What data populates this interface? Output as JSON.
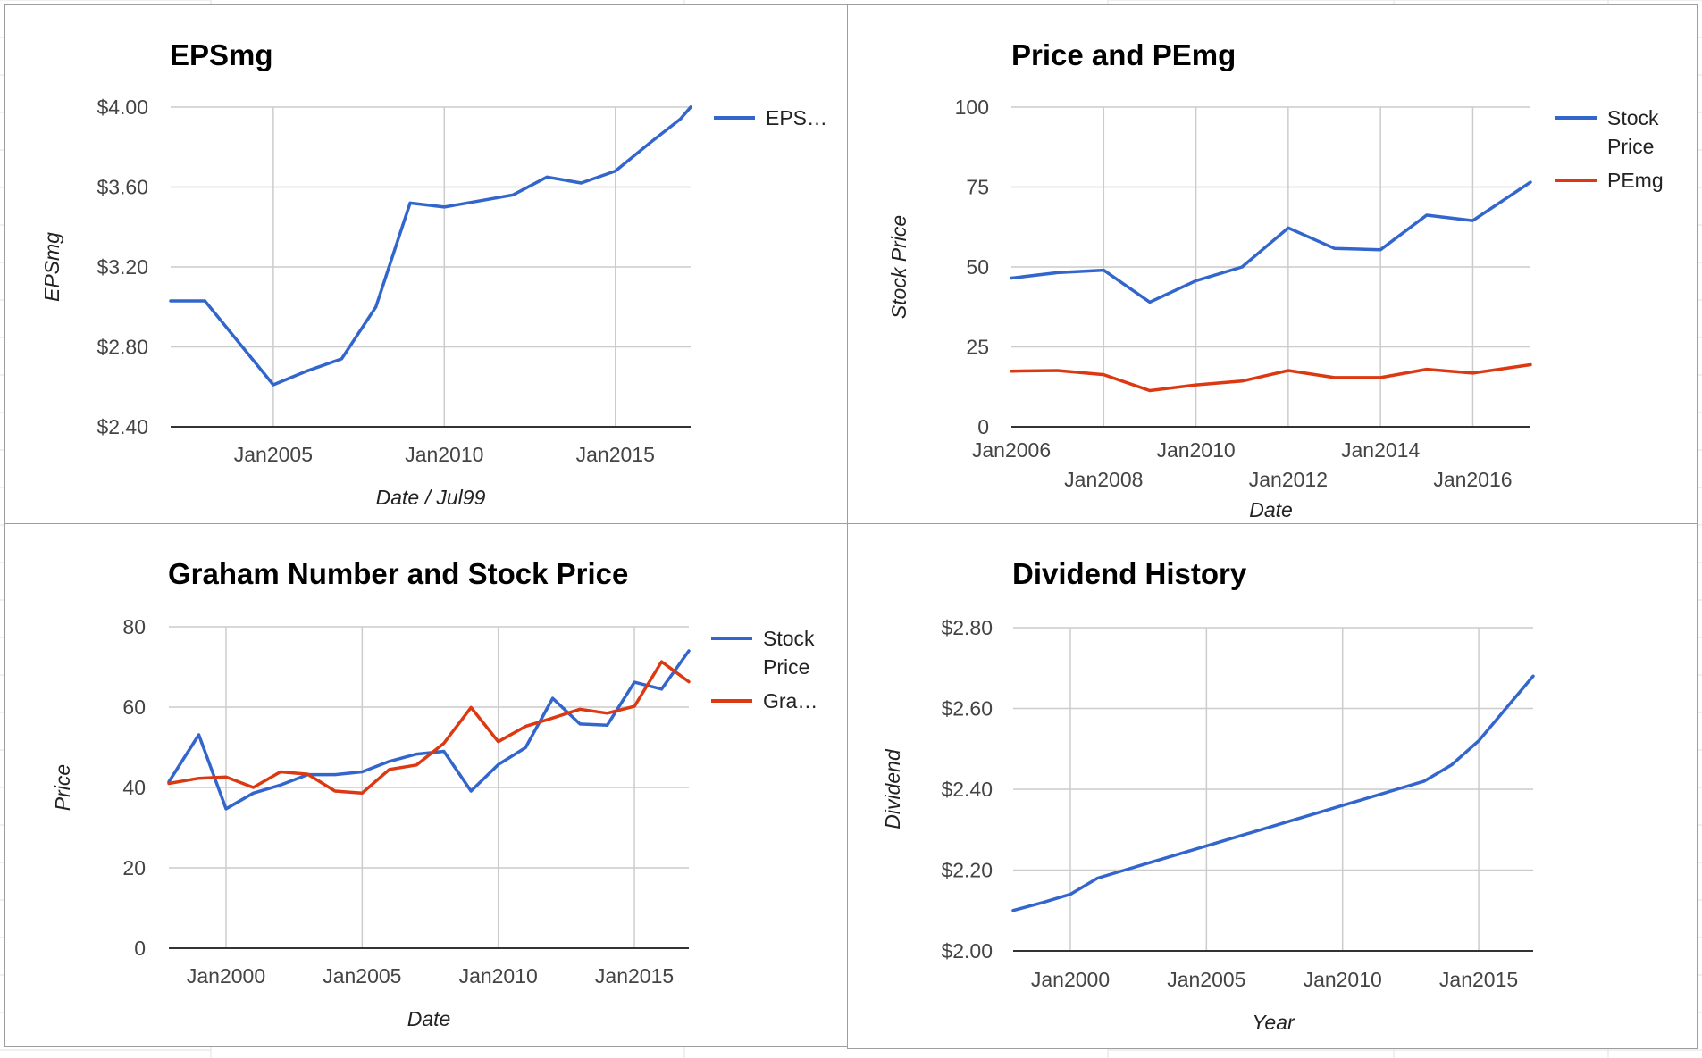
{
  "colors": {
    "blue": "#3366cc",
    "red": "#dc3912",
    "grid": "#cccccc",
    "axis": "#333333",
    "sheet_grid": "#e2e2e2"
  },
  "chart_data": [
    {
      "type": "line",
      "title": "EPSmg",
      "xlabel": "Date / Jul99",
      "ylabel": "EPSmg",
      "x_ticks": [
        "Jan2005",
        "Jan2010",
        "Jan2015"
      ],
      "x_tick_values": [
        2005,
        2010,
        2015
      ],
      "xlim": [
        2002,
        2017.2
      ],
      "ylim": [
        2.4,
        4.0
      ],
      "y_ticks": [
        2.4,
        2.8,
        3.2,
        3.6,
        4.0
      ],
      "y_tick_labels": [
        "$2.40",
        "$2.80",
        "$3.20",
        "$3.60",
        "$4.00"
      ],
      "grid": true,
      "legend_position": "right",
      "series": [
        {
          "name": "EPS…",
          "color": "blue",
          "x": [
            2002,
            2003,
            2004,
            2005,
            2006,
            2007,
            2008,
            2009,
            2010,
            2011,
            2012,
            2013,
            2014,
            2015,
            2016,
            2016.9,
            2017.2
          ],
          "y": [
            3.03,
            3.03,
            2.82,
            2.61,
            2.68,
            2.74,
            3.0,
            3.52,
            3.5,
            3.53,
            3.56,
            3.65,
            3.62,
            3.68,
            3.82,
            3.94,
            4.0
          ]
        }
      ]
    },
    {
      "type": "line",
      "title": "Price and PEmg",
      "xlabel": "Date",
      "ylabel": "Stock Price",
      "x_ticks": [
        "Jan2006",
        "Jan2008",
        "Jan2010",
        "Jan2012",
        "Jan2014",
        "Jan2016"
      ],
      "x_tick_values": [
        2006,
        2008,
        2010,
        2012,
        2014,
        2016
      ],
      "xlim": [
        2006,
        2017.25
      ],
      "ylim": [
        0,
        100
      ],
      "y_ticks": [
        0,
        25,
        50,
        75,
        100
      ],
      "y_tick_labels": [
        "0",
        "25",
        "50",
        "75",
        "100"
      ],
      "grid": true,
      "legend_position": "right",
      "series": [
        {
          "name": "Stock Price",
          "legend_lines": [
            "Stock",
            "Price"
          ],
          "color": "blue",
          "x": [
            2006,
            2007,
            2008,
            2009,
            2010,
            2011,
            2012,
            2013,
            2014,
            2015,
            2016,
            2017.25
          ],
          "y": [
            46.5,
            48.2,
            49,
            39,
            45.7,
            50,
            62.2,
            55.8,
            55.4,
            66.2,
            64.5,
            76.5
          ]
        },
        {
          "name": "PEmg",
          "legend_lines": [
            "PEmg"
          ],
          "color": "red",
          "x": [
            2006,
            2007,
            2008,
            2009,
            2010,
            2011,
            2012,
            2013,
            2014,
            2015,
            2016,
            2017.25
          ],
          "y": [
            17.4,
            17.6,
            16.3,
            11.3,
            13.1,
            14.3,
            17.6,
            15.4,
            15.4,
            18,
            16.8,
            19.4
          ]
        }
      ]
    },
    {
      "type": "line",
      "title": "Graham Number and Stock Price",
      "xlabel": "Date",
      "ylabel": "Price",
      "x_ticks": [
        "Jan2000",
        "Jan2005",
        "Jan2010",
        "Jan2015"
      ],
      "x_tick_values": [
        2000,
        2005,
        2010,
        2015
      ],
      "xlim": [
        1997.9,
        2017
      ],
      "ylim": [
        0,
        80
      ],
      "y_ticks": [
        0,
        20,
        40,
        60,
        80
      ],
      "y_tick_labels": [
        "0",
        "20",
        "40",
        "60",
        "80"
      ],
      "grid": true,
      "legend_position": "right",
      "series": [
        {
          "name": "Stock Price",
          "legend_lines": [
            "Stock",
            "Price"
          ],
          "color": "blue",
          "x": [
            1997.9,
            1999,
            2000,
            2001,
            2002,
            2003,
            2004,
            2005,
            2006,
            2007,
            2008,
            2009,
            2010,
            2011,
            2012,
            2013,
            2014,
            2015,
            2016,
            2017
          ],
          "y": [
            41.4,
            53.1,
            34.7,
            38.6,
            40.6,
            43.2,
            43.2,
            43.9,
            46.5,
            48.3,
            49,
            39.1,
            45.7,
            49.9,
            62.2,
            55.8,
            55.5,
            66.2,
            64.5,
            74
          ]
        },
        {
          "name": "Gra…",
          "legend_lines": [
            "Gra…"
          ],
          "color": "red",
          "x": [
            1997.9,
            1999,
            2000,
            2001,
            2002,
            2003,
            2004,
            2005,
            2006,
            2007,
            2008,
            2009,
            2010,
            2011,
            2012,
            2013,
            2014,
            2015,
            2016,
            2017
          ],
          "y": [
            41,
            42.3,
            42.6,
            40,
            43.9,
            43.3,
            39.1,
            38.6,
            44.5,
            45.6,
            51,
            59.9,
            51.4,
            55.2,
            57.3,
            59.5,
            58.5,
            60.2,
            71.3,
            66.3
          ]
        }
      ]
    },
    {
      "type": "line",
      "title": "Dividend History",
      "xlabel": "Year",
      "ylabel": "Dividend",
      "x_ticks": [
        "Jan2000",
        "Jan2005",
        "Jan2010",
        "Jan2015"
      ],
      "x_tick_values": [
        2000,
        2005,
        2010,
        2015
      ],
      "xlim": [
        1997.9,
        2017
      ],
      "ylim": [
        2.0,
        2.8
      ],
      "y_ticks": [
        2.0,
        2.2,
        2.4,
        2.6,
        2.8
      ],
      "y_tick_labels": [
        "$2.00",
        "$2.20",
        "$2.40",
        "$2.60",
        "$2.80"
      ],
      "grid": true,
      "legend_position": "none",
      "series": [
        {
          "color": "blue",
          "x": [
            1997.9,
            1999,
            2000,
            2001,
            2002,
            2003,
            2004,
            2005,
            2006,
            2007,
            2008,
            2009,
            2010,
            2011,
            2012,
            2013,
            2014,
            2015,
            2016,
            2017
          ],
          "y": [
            2.1,
            2.12,
            2.14,
            2.18,
            2.2,
            2.22,
            2.24,
            2.26,
            2.28,
            2.3,
            2.32,
            2.34,
            2.36,
            2.38,
            2.4,
            2.42,
            2.46,
            2.52,
            2.6,
            2.68
          ]
        }
      ]
    }
  ]
}
